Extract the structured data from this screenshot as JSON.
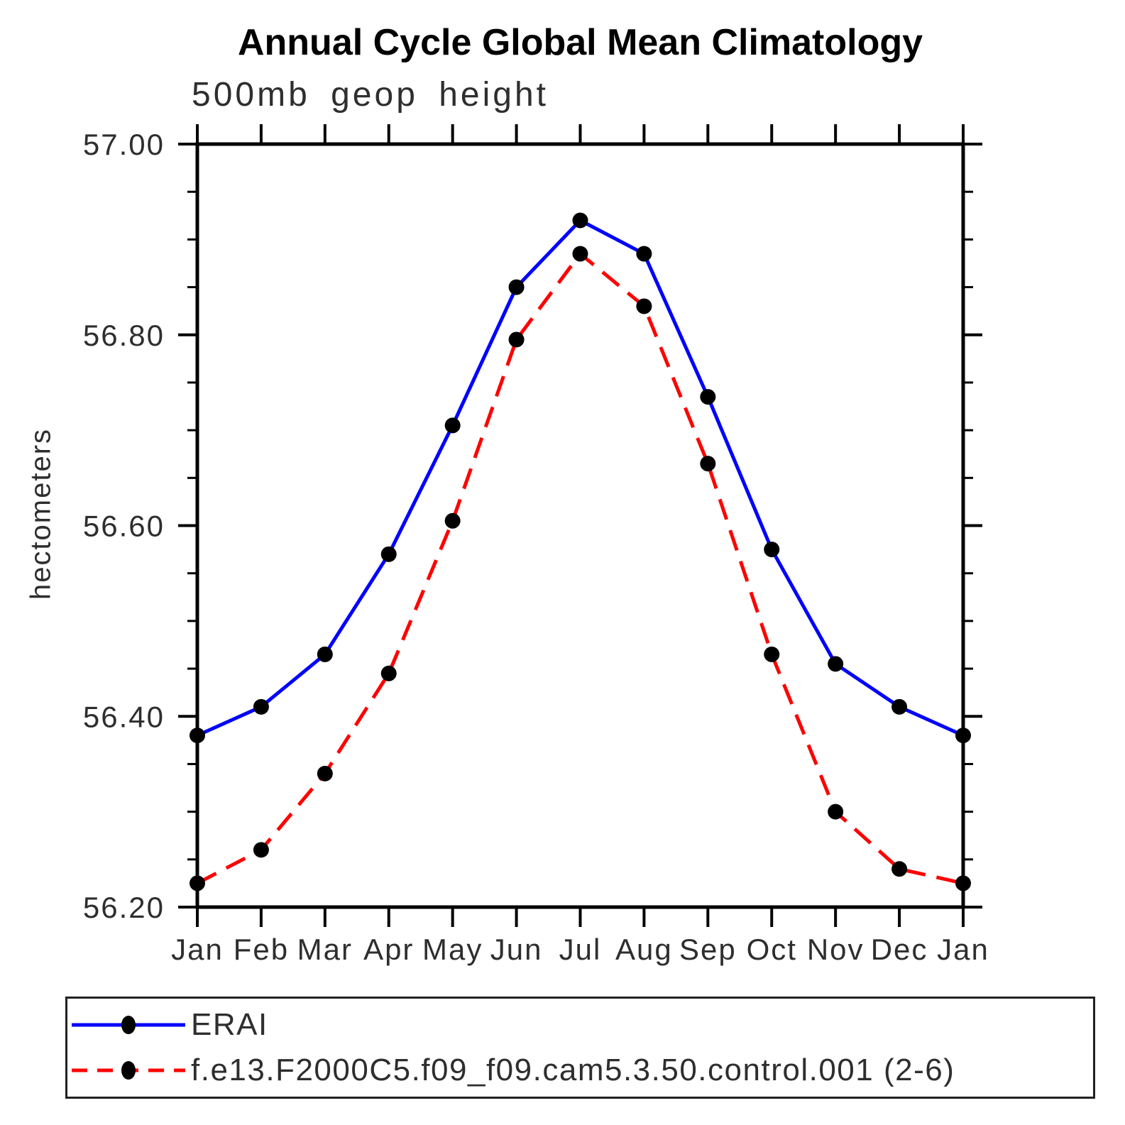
{
  "chart": {
    "title": "Annual Cycle Global Mean Climatology",
    "subtitle": "500mb geop height",
    "ylabel": "hectometers"
  },
  "colors": {
    "axis": "#000000",
    "text": "#2e2e2e",
    "background": "#ffffff",
    "erai_line": "#0000ff",
    "model_line": "#ff0000",
    "marker": "#000000"
  },
  "chart_data": {
    "type": "line",
    "title": "Annual Cycle Global Mean Climatology",
    "subtitle": "500mb geop height",
    "xlabel": "",
    "ylabel": "hectometers",
    "categories": [
      "Jan",
      "Feb",
      "Mar",
      "Apr",
      "May",
      "Jun",
      "Jul",
      "Aug",
      "Sep",
      "Oct",
      "Nov",
      "Dec",
      "Jan"
    ],
    "series": [
      {
        "name": "ERAI",
        "color": "#0000ff",
        "line_style": "solid",
        "marker": "filled-circle",
        "marker_color": "#000000",
        "values": [
          56.38,
          56.41,
          56.465,
          56.57,
          56.705,
          56.85,
          56.92,
          56.885,
          56.735,
          56.575,
          56.455,
          56.41,
          56.38
        ]
      },
      {
        "name": "f.e13.F2000C5.f09_f09.cam5.3.50.control.001 (2-6)",
        "color": "#ff0000",
        "line_style": "dashed",
        "marker": "filled-circle",
        "marker_color": "#000000",
        "values": [
          56.225,
          56.26,
          56.34,
          56.445,
          56.605,
          56.795,
          56.885,
          56.83,
          56.665,
          56.465,
          56.3,
          56.24,
          56.225
        ]
      }
    ],
    "ylim": [
      56.2,
      57.0
    ],
    "y_major_ticks": [
      "57.00",
      "56.80",
      "56.60",
      "56.40",
      "56.20"
    ],
    "y_minor_step": 0.05,
    "x_minor_ticks": false,
    "grid": false,
    "legend_position": "bottom-box"
  }
}
